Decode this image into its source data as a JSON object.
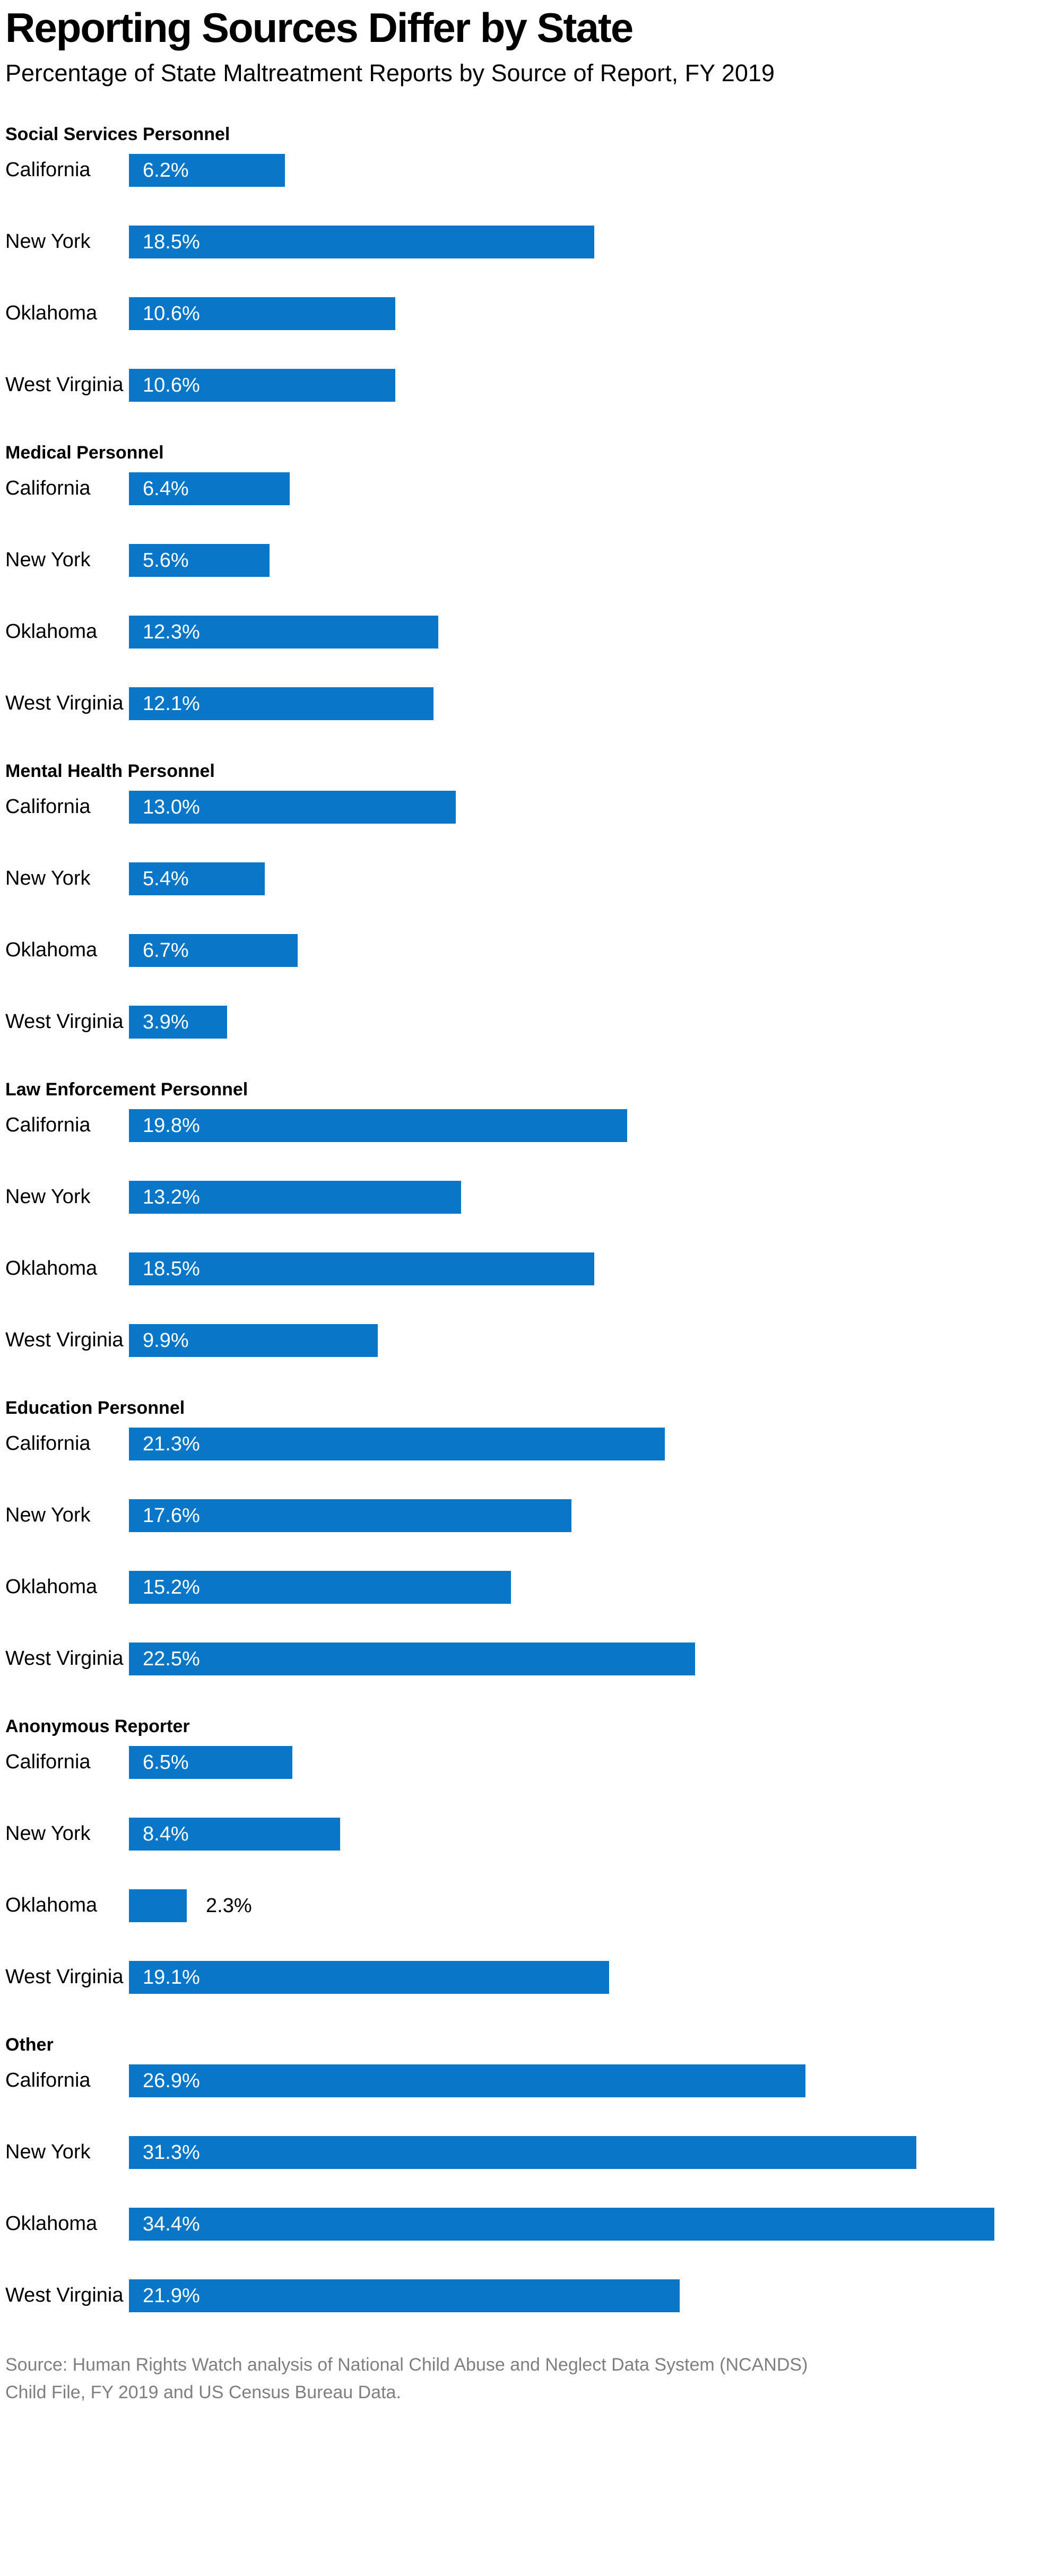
{
  "page": {
    "title": "Reporting Sources Differ by State",
    "subtitle": "Percentage of State Maltreatment Reports by Source of Report, FY 2019",
    "source_line1": "Source: Human Rights Watch analysis of National Child Abuse and Neglect Data System (NCANDS)",
    "source_line2": "Child File, FY 2019 and US Census Bureau Data."
  },
  "colors": {
    "bar": "#0a76c7",
    "value_text_inside": "#ffffff",
    "value_text_outside": "#000000",
    "label_text": "#000000",
    "source_text": "#7f7f7f",
    "background": "#ffffff"
  },
  "chart_data": {
    "type": "bar",
    "orientation": "horizontal",
    "unit": "%",
    "title": "Reporting Sources Differ by State",
    "subtitle": "Percentage of State Maltreatment Reports by Source of Report, FY 2019",
    "value_axis_max": 35,
    "grid": false,
    "legend": false,
    "value_labels_position": "inside-left (outside-right when bar too short)",
    "categories": [
      "California",
      "New York",
      "Oklahoma",
      "West Virginia"
    ],
    "groups": [
      {
        "label": "Social Services Personnel",
        "values": [
          6.2,
          18.5,
          10.6,
          10.6
        ]
      },
      {
        "label": "Medical Personnel",
        "values": [
          6.4,
          5.6,
          12.3,
          12.1
        ]
      },
      {
        "label": "Mental Health Personnel",
        "values": [
          13.0,
          5.4,
          6.7,
          3.9
        ]
      },
      {
        "label": "Law Enforcement Personnel",
        "values": [
          19.8,
          13.2,
          18.5,
          9.9
        ]
      },
      {
        "label": "Education Personnel",
        "values": [
          21.3,
          17.6,
          15.2,
          22.5
        ]
      },
      {
        "label": "Anonymous Reporter",
        "values": [
          6.5,
          8.4,
          2.3,
          19.1
        ]
      },
      {
        "label": "Other",
        "values": [
          26.9,
          31.3,
          34.4,
          21.9
        ]
      }
    ]
  }
}
